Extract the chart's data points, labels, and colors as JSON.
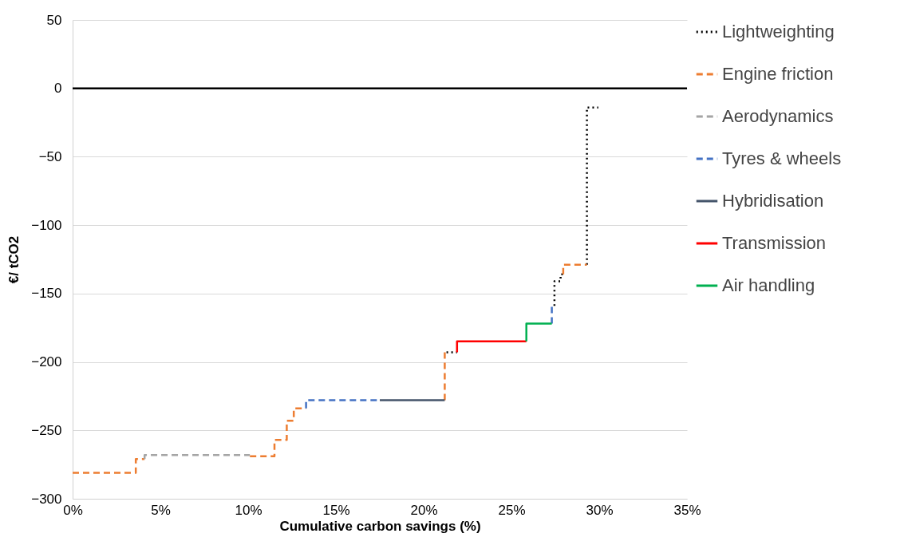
{
  "chart_data": {
    "type": "step",
    "xlabel": "Cumulative carbon savings (%)",
    "ylabel": "€/ tCO2",
    "xlim": [
      0,
      35
    ],
    "ylim": [
      -300,
      50
    ],
    "xticks": [
      {
        "value": 0,
        "label": "0%"
      },
      {
        "value": 5,
        "label": "5%"
      },
      {
        "value": 10,
        "label": "10%"
      },
      {
        "value": 15,
        "label": "15%"
      },
      {
        "value": 20,
        "label": "20%"
      },
      {
        "value": 25,
        "label": "25%"
      },
      {
        "value": 30,
        "label": "30%"
      },
      {
        "value": 35,
        "label": "35%"
      }
    ],
    "yticks": [
      -300,
      -250,
      -200,
      -150,
      -100,
      -50,
      0,
      50
    ],
    "grid": "y",
    "legend": "right",
    "ref_lines": [
      {
        "axis": "y",
        "value": 0,
        "color": "#000000"
      }
    ],
    "series": [
      {
        "name": "Lightweighting",
        "color": "#000000",
        "line_style": "dotted",
        "x": [
          21.3,
          21.9,
          null,
          27.45,
          27.8,
          27.95,
          null,
          29.3,
          29.95
        ],
        "values": [
          -193,
          -193,
          null,
          -159,
          -141,
          -136,
          null,
          -129,
          -14
        ]
      },
      {
        "name": "Engine friction",
        "color": "#ed7d31",
        "line_style": "dashed",
        "x": [
          0,
          3.6,
          4.1,
          null,
          10.1,
          11.5,
          12.2,
          12.6,
          13.3,
          null,
          21.2,
          21.3,
          null,
          27.95,
          29.3
        ],
        "values": [
          -281,
          -281,
          -271,
          null,
          -269,
          -269,
          -257,
          -243,
          -234,
          null,
          -228,
          -193,
          null,
          -136,
          -129
        ]
      },
      {
        "name": "Aerodynamics",
        "color": "#a5a5a5",
        "line_style": "dashed",
        "x": [
          4.1,
          10.1
        ],
        "values": [
          -271,
          -268
        ]
      },
      {
        "name": "Tyres & wheels",
        "color": "#4472c4",
        "line_style": "dashed",
        "x": [
          13.3,
          17.5,
          null,
          27.3,
          27.45
        ],
        "values": [
          -234,
          -228,
          null,
          -172,
          -159
        ]
      },
      {
        "name": "Hybridisation",
        "color": "#44546a",
        "line_style": "solid",
        "x": [
          17.5,
          21.2
        ],
        "values": [
          -228,
          -228
        ]
      },
      {
        "name": "Transmission",
        "color": "#ff0000",
        "line_style": "solid",
        "x": [
          21.9,
          25.85
        ],
        "values": [
          -193,
          -185
        ]
      },
      {
        "name": "Air handling",
        "color": "#00b050",
        "line_style": "solid",
        "x": [
          25.85,
          27.3
        ],
        "values": [
          -185,
          -172
        ]
      }
    ]
  }
}
